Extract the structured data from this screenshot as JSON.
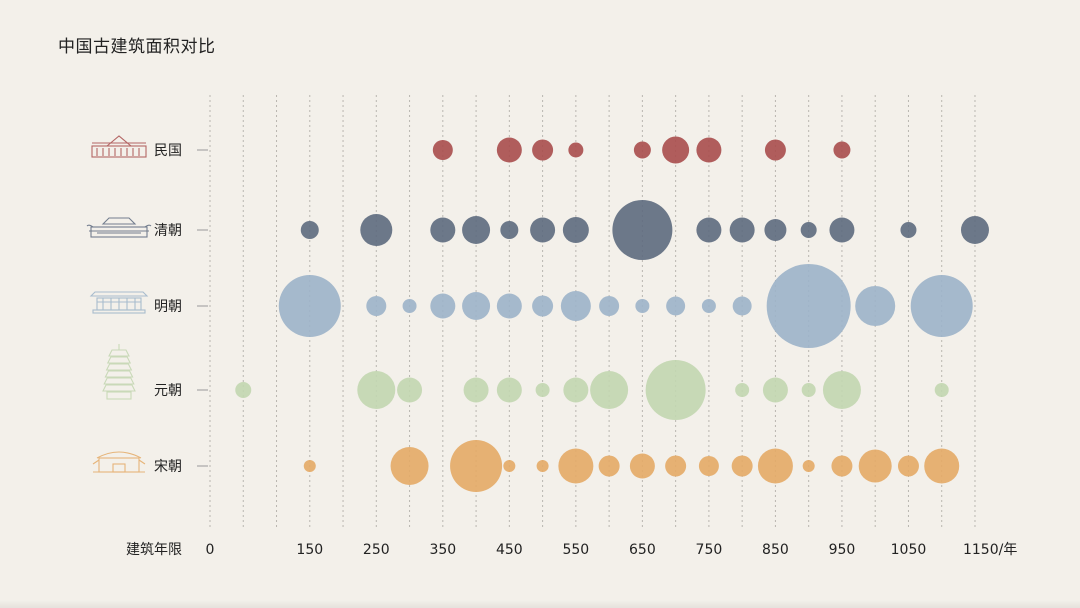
{
  "title": "中国古建筑面积对比",
  "chart_data": {
    "type": "scatter",
    "title": "中国古建筑面积对比",
    "xlabel": "建筑年限",
    "x_unit_suffix": "/年",
    "x_ticks": [
      0,
      150,
      250,
      350,
      450,
      550,
      650,
      750,
      850,
      950,
      1050,
      1150
    ],
    "x_tick_labels": [
      "0",
      "150",
      "250",
      "350",
      "450",
      "550",
      "650",
      "750",
      "850",
      "950",
      "1050",
      "1150/年"
    ],
    "gridlines": [
      0,
      50,
      100,
      150,
      200,
      250,
      300,
      350,
      400,
      450,
      500,
      550,
      600,
      650,
      700,
      750,
      800,
      850,
      900,
      950,
      1000,
      1050,
      1100,
      1150
    ],
    "xlim": [
      0,
      1150
    ],
    "grid": true,
    "series": [
      {
        "name": "民国",
        "color": "#a94d4d",
        "icon": "republic-building-icon",
        "points": [
          {
            "x": 350,
            "size": 10
          },
          {
            "x": 450,
            "size": 12.5
          },
          {
            "x": 500,
            "size": 10.5
          },
          {
            "x": 550,
            "size": 7.5
          },
          {
            "x": 650,
            "size": 8.5
          },
          {
            "x": 700,
            "size": 13.5
          },
          {
            "x": 750,
            "size": 12.5
          },
          {
            "x": 850,
            "size": 10.5
          },
          {
            "x": 950,
            "size": 8.5
          }
        ]
      },
      {
        "name": "清朝",
        "color": "#5d6a7e",
        "icon": "qing-palace-icon",
        "points": [
          {
            "x": 150,
            "size": 9
          },
          {
            "x": 250,
            "size": 16
          },
          {
            "x": 350,
            "size": 12.5
          },
          {
            "x": 400,
            "size": 14
          },
          {
            "x": 450,
            "size": 9
          },
          {
            "x": 500,
            "size": 12.5
          },
          {
            "x": 550,
            "size": 13
          },
          {
            "x": 650,
            "size": 30
          },
          {
            "x": 750,
            "size": 12.5
          },
          {
            "x": 800,
            "size": 12.5
          },
          {
            "x": 850,
            "size": 11
          },
          {
            "x": 900,
            "size": 8
          },
          {
            "x": 950,
            "size": 12.5
          },
          {
            "x": 1050,
            "size": 8
          },
          {
            "x": 1150,
            "size": 14
          }
        ]
      },
      {
        "name": "明朝",
        "color": "#9cb3c9",
        "icon": "ming-hall-icon",
        "points": [
          {
            "x": 150,
            "size": 31
          },
          {
            "x": 250,
            "size": 10
          },
          {
            "x": 300,
            "size": 7
          },
          {
            "x": 350,
            "size": 12.5
          },
          {
            "x": 400,
            "size": 14
          },
          {
            "x": 450,
            "size": 12.5
          },
          {
            "x": 500,
            "size": 10.5
          },
          {
            "x": 550,
            "size": 15
          },
          {
            "x": 600,
            "size": 10
          },
          {
            "x": 650,
            "size": 7
          },
          {
            "x": 700,
            "size": 9.5
          },
          {
            "x": 750,
            "size": 7
          },
          {
            "x": 800,
            "size": 9.5
          },
          {
            "x": 900,
            "size": 42
          },
          {
            "x": 1000,
            "size": 20
          },
          {
            "x": 1100,
            "size": 31
          }
        ]
      },
      {
        "name": "元朝",
        "color": "#c2d6b0",
        "icon": "yuan-pagoda-icon",
        "points": [
          {
            "x": 50,
            "size": 8
          },
          {
            "x": 250,
            "size": 19
          },
          {
            "x": 300,
            "size": 12.5
          },
          {
            "x": 400,
            "size": 12.5
          },
          {
            "x": 450,
            "size": 12.5
          },
          {
            "x": 500,
            "size": 7
          },
          {
            "x": 550,
            "size": 12.5
          },
          {
            "x": 600,
            "size": 19
          },
          {
            "x": 700,
            "size": 30
          },
          {
            "x": 800,
            "size": 7
          },
          {
            "x": 850,
            "size": 12.5
          },
          {
            "x": 900,
            "size": 7
          },
          {
            "x": 950,
            "size": 19
          },
          {
            "x": 1100,
            "size": 7
          }
        ]
      },
      {
        "name": "宋朝",
        "color": "#e4aa66",
        "icon": "song-gate-icon",
        "points": [
          {
            "x": 150,
            "size": 6
          },
          {
            "x": 300,
            "size": 19
          },
          {
            "x": 400,
            "size": 26
          },
          {
            "x": 450,
            "size": 6
          },
          {
            "x": 500,
            "size": 6
          },
          {
            "x": 550,
            "size": 17.5
          },
          {
            "x": 600,
            "size": 10.5
          },
          {
            "x": 650,
            "size": 12.5
          },
          {
            "x": 700,
            "size": 10.5
          },
          {
            "x": 750,
            "size": 10
          },
          {
            "x": 800,
            "size": 10.5
          },
          {
            "x": 850,
            "size": 17.5
          },
          {
            "x": 900,
            "size": 6
          },
          {
            "x": 950,
            "size": 10.5
          },
          {
            "x": 1000,
            "size": 16.5
          },
          {
            "x": 1050,
            "size": 10.5
          },
          {
            "x": 1100,
            "size": 17.5
          }
        ]
      }
    ]
  }
}
